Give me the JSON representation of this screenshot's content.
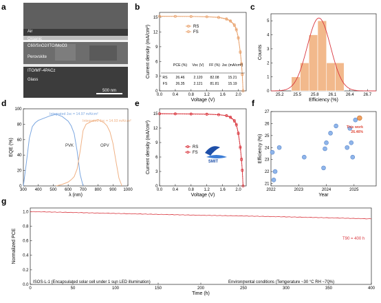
{
  "panels": {
    "a": {
      "label": "a",
      "layers": [
        "Air",
        "Organic",
        "C60/SnO2/ITO/MoO3",
        "Perovskite",
        "ITO/MF-4PACz",
        "Glass"
      ],
      "scalebar": "500 nm"
    },
    "b": {
      "label": "b",
      "legend": [
        "RS",
        "FS"
      ],
      "table": {
        "headers": [
          "",
          "PCE (%)",
          "Voc (V)",
          "FF (%)",
          "Jsc (mA/cm²)"
        ],
        "rows": [
          [
            "RS",
            "26.46",
            "2.120",
            "82.08",
            "15.21"
          ],
          [
            "FS",
            "26.35",
            "2.121",
            "81.81",
            "15.19"
          ]
        ]
      }
    },
    "c": {
      "label": "c"
    },
    "d": {
      "label": "d"
    },
    "e": {
      "label": "e",
      "logo_text": "SMIT"
    },
    "f": {
      "label": "f"
    },
    "g": {
      "label": "g"
    }
  },
  "chart_data": [
    {
      "id": "b",
      "type": "line",
      "xlabel": "Voltage (V)",
      "ylabel": "Current density (mA/cm²)",
      "xlim": [
        0,
        2.2
      ],
      "ylim": [
        0,
        16
      ],
      "xticks": [
        0,
        0.4,
        0.8,
        1.2,
        1.6,
        2.0
      ],
      "yticks": [
        0,
        3,
        6,
        9,
        12,
        15
      ],
      "series": [
        {
          "name": "RS",
          "color": "#e8a06a",
          "x": [
            0,
            0.4,
            0.8,
            1.2,
            1.5,
            1.7,
            1.8,
            1.9,
            1.95,
            2.0,
            2.05,
            2.08,
            2.1,
            2.12
          ],
          "y": [
            15.21,
            15.2,
            15.18,
            15.12,
            15.0,
            14.7,
            14.3,
            13.5,
            12.6,
            10.9,
            8.0,
            5.6,
            3.4,
            0
          ]
        },
        {
          "name": "FS",
          "color": "#e8a06a",
          "x": [
            0,
            0.4,
            0.8,
            1.2,
            1.5,
            1.7,
            1.8,
            1.9,
            1.95,
            2.0,
            2.05,
            2.08,
            2.1,
            2.121
          ],
          "y": [
            15.19,
            15.18,
            15.16,
            15.1,
            14.95,
            14.6,
            14.2,
            13.3,
            12.4,
            10.7,
            7.8,
            5.4,
            3.3,
            0
          ]
        }
      ]
    },
    {
      "id": "c",
      "type": "bar",
      "xlabel": "Efficiency (%)",
      "ylabel": "Counts",
      "xlim": [
        25.05,
        26.85
      ],
      "ylim": [
        0,
        5.5
      ],
      "xticks": [
        25.2,
        25.5,
        25.8,
        26.1,
        26.4,
        26.7
      ],
      "yticks": [
        0,
        1,
        2,
        3,
        4,
        5
      ],
      "bin_width": 0.15,
      "bins": [
        25.475,
        25.625,
        25.775,
        25.925,
        26.075,
        26.225
      ],
      "values": [
        1,
        2,
        4,
        5,
        2,
        2
      ],
      "fit": {
        "mean": 25.87,
        "sigma": 0.2,
        "peak": 5.2
      }
    },
    {
      "id": "d",
      "type": "line",
      "xlabel": "λ (nm)",
      "ylabel": "EQE (%)",
      "xlim": [
        300,
        1000
      ],
      "ylim": [
        0,
        100
      ],
      "xticks": [
        300,
        400,
        500,
        600,
        700,
        800,
        900,
        1000
      ],
      "yticks": [
        0,
        20,
        40,
        60,
        80,
        100
      ],
      "annotations": [
        "Integrated Jsc = 14.97 mA/cm²",
        "Integrated Jsc = 14.93 mA/cm²"
      ],
      "series": [
        {
          "name": "PVK",
          "color": "#7aa6e0",
          "x": [
            300,
            320,
            340,
            360,
            380,
            400,
            440,
            480,
            520,
            560,
            600,
            620,
            640,
            660,
            680,
            700
          ],
          "y": [
            0,
            30,
            62,
            77,
            82,
            85,
            88,
            91,
            93,
            90,
            84,
            78,
            68,
            45,
            15,
            0
          ]
        },
        {
          "name": "OPV",
          "color": "#f0b184",
          "x": [
            520,
            560,
            600,
            620,
            640,
            660,
            680,
            700,
            720,
            740,
            760,
            780,
            800,
            820,
            840,
            860,
            880,
            900,
            920,
            940,
            960
          ],
          "y": [
            0,
            2,
            5,
            8,
            12,
            22,
            45,
            72,
            80,
            82,
            84,
            85,
            86,
            84,
            82,
            78,
            70,
            55,
            32,
            10,
            0
          ]
        }
      ]
    },
    {
      "id": "e",
      "type": "line",
      "xlabel": "Voltage (V)",
      "ylabel": "Current density (mA/cm²)",
      "xlim": [
        0,
        2.2
      ],
      "ylim": [
        0,
        16
      ],
      "xticks": [
        0,
        0.4,
        0.8,
        1.2,
        1.6,
        2.0
      ],
      "yticks": [
        0,
        3,
        6,
        9,
        12,
        15
      ],
      "series": [
        {
          "name": "RS",
          "color": "#d9363e",
          "x": [
            0,
            0.4,
            0.8,
            1.2,
            1.5,
            1.7,
            1.8,
            1.9,
            1.95,
            2.0,
            2.05,
            2.08,
            2.1,
            2.12
          ],
          "y": [
            15.0,
            14.98,
            14.95,
            14.9,
            14.8,
            14.6,
            14.3,
            13.6,
            12.8,
            11.0,
            8.1,
            5.6,
            3.3,
            0
          ]
        },
        {
          "name": "FS",
          "color": "#d9363e",
          "x": [
            0,
            0.4,
            0.8,
            1.2,
            1.5,
            1.7,
            1.8,
            1.9,
            1.95,
            2.0,
            2.05,
            2.08,
            2.1,
            2.121
          ],
          "y": [
            14.95,
            14.93,
            14.9,
            14.85,
            14.75,
            14.55,
            14.2,
            13.4,
            12.6,
            10.8,
            7.9,
            5.4,
            3.2,
            0
          ]
        }
      ]
    },
    {
      "id": "f",
      "type": "scatter",
      "xlabel": "Year",
      "ylabel": "Efficiency (%)",
      "xlim": [
        2022,
        2025.8
      ],
      "ylim": [
        20.8,
        27
      ],
      "xticks": [
        2022,
        2023,
        2024,
        2025
      ],
      "yticks": [
        21,
        22,
        23,
        24,
        25,
        26,
        27
      ],
      "annotation": [
        "This work",
        "26.46%"
      ],
      "points": [
        {
          "x": 2022.05,
          "y": 23.6
        },
        {
          "x": 2022.1,
          "y": 21.3
        },
        {
          "x": 2022.15,
          "y": 22.0
        },
        {
          "x": 2022.3,
          "y": 24.0
        },
        {
          "x": 2023.2,
          "y": 23.2
        },
        {
          "x": 2023.9,
          "y": 22.3
        },
        {
          "x": 2023.95,
          "y": 23.9
        },
        {
          "x": 2024.0,
          "y": 24.4
        },
        {
          "x": 2024.15,
          "y": 25.2
        },
        {
          "x": 2024.35,
          "y": 25.8
        },
        {
          "x": 2024.75,
          "y": 24.0
        },
        {
          "x": 2024.85,
          "y": 25.6
        },
        {
          "x": 2024.9,
          "y": 24.4
        },
        {
          "x": 2024.95,
          "y": 23.2
        },
        {
          "x": 2025.05,
          "y": 26.3
        }
      ],
      "highlight": {
        "x": 2025.2,
        "y": 26.46,
        "color": "#f0a060"
      }
    },
    {
      "id": "g",
      "type": "line",
      "xlabel": "Time (h)",
      "ylabel": "Normalized PCE",
      "xlim": [
        0,
        400
      ],
      "ylim": [
        0,
        1.05
      ],
      "xticks": [
        0,
        50,
        100,
        150,
        200,
        250,
        300,
        350,
        400
      ],
      "yticks": [
        0,
        0.2,
        0.4,
        0.6,
        0.8,
        1.0
      ],
      "annotations": [
        "T90 = 400 h",
        "ISOS-L-1 (Encapsulated solar cell under 1 sun LED illumination)",
        "Environmental conditions  (Temperature ~30 °C  RH ~70%)"
      ],
      "series": [
        {
          "name": "",
          "color": "#d9363e",
          "x": [
            0,
            50,
            100,
            150,
            200,
            250,
            300,
            350,
            400
          ],
          "y": [
            1.0,
            0.988,
            0.975,
            0.962,
            0.95,
            0.94,
            0.928,
            0.915,
            0.9
          ]
        }
      ]
    }
  ]
}
